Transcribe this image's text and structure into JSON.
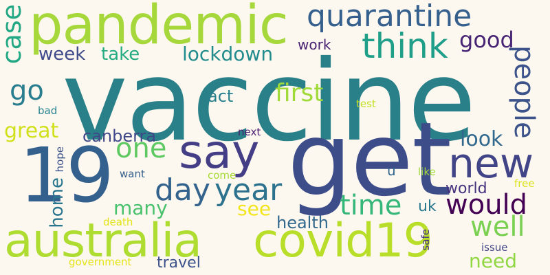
{
  "words": [
    {
      "text": "vaccine",
      "color": "#2a8088"
    },
    {
      "text": "get",
      "color": "#3d4d8a"
    },
    {
      "text": "19",
      "color": "#34608d"
    },
    {
      "text": "pandemic",
      "color": "#a6d83c"
    },
    {
      "text": "australia",
      "color": "#aedc30"
    },
    {
      "text": "covid19",
      "color": "#b8de29"
    },
    {
      "text": "say",
      "color": "#433e85"
    },
    {
      "text": "quarantine",
      "color": "#355f8d"
    },
    {
      "text": "new",
      "color": "#414487"
    },
    {
      "text": "would",
      "color": "#440154"
    },
    {
      "text": "people",
      "color": "#3b528b"
    },
    {
      "text": "think",
      "color": "#1f9e89"
    },
    {
      "text": "day",
      "color": "#33638d"
    },
    {
      "text": "year",
      "color": "#2c728e"
    },
    {
      "text": "time",
      "color": "#35b779"
    },
    {
      "text": "case",
      "color": "#22a884"
    },
    {
      "text": "go",
      "color": "#287d8e"
    },
    {
      "text": "one",
      "color": "#5ec962"
    },
    {
      "text": "well",
      "color": "#7ad151"
    },
    {
      "text": "first",
      "color": "#a0da39"
    },
    {
      "text": "lockdown",
      "color": "#228c8d"
    },
    {
      "text": "week",
      "color": "#3e4a89"
    },
    {
      "text": "take",
      "color": "#25ab82"
    },
    {
      "text": "good",
      "color": "#482475"
    },
    {
      "text": "great",
      "color": "#d0e11c"
    },
    {
      "text": "canberra",
      "color": "#3f4788"
    },
    {
      "text": "many",
      "color": "#4ac16d"
    },
    {
      "text": "look",
      "color": "#31688e"
    },
    {
      "text": "home",
      "color": "#2a768e"
    },
    {
      "text": "health",
      "color": "#31688e"
    },
    {
      "text": "need",
      "color": "#90d743"
    },
    {
      "text": "act",
      "color": "#277f8e"
    },
    {
      "text": "see",
      "color": "#f1e51d"
    },
    {
      "text": "world",
      "color": "#46327e"
    },
    {
      "text": "uk",
      "color": "#2a788e"
    },
    {
      "text": "travel",
      "color": "#3b528b"
    },
    {
      "text": "work",
      "color": "#482173"
    },
    {
      "text": "hope",
      "color": "#3b528b"
    },
    {
      "text": "bad",
      "color": "#26828e"
    },
    {
      "text": "next",
      "color": "#481d6f"
    },
    {
      "text": "want",
      "color": "#355f8d"
    },
    {
      "text": "come",
      "color": "#a5db36"
    },
    {
      "text": "test",
      "color": "#c2df23"
    },
    {
      "text": "u",
      "color": "#32658e"
    },
    {
      "text": "like",
      "color": "#a2da37"
    },
    {
      "text": "free",
      "color": "#dae319"
    },
    {
      "text": "safe",
      "color": "#46307e"
    },
    {
      "text": "issue",
      "color": "#404588"
    },
    {
      "text": "death",
      "color": "#e2e418"
    },
    {
      "text": "government",
      "color": "#e5e419"
    }
  ]
}
